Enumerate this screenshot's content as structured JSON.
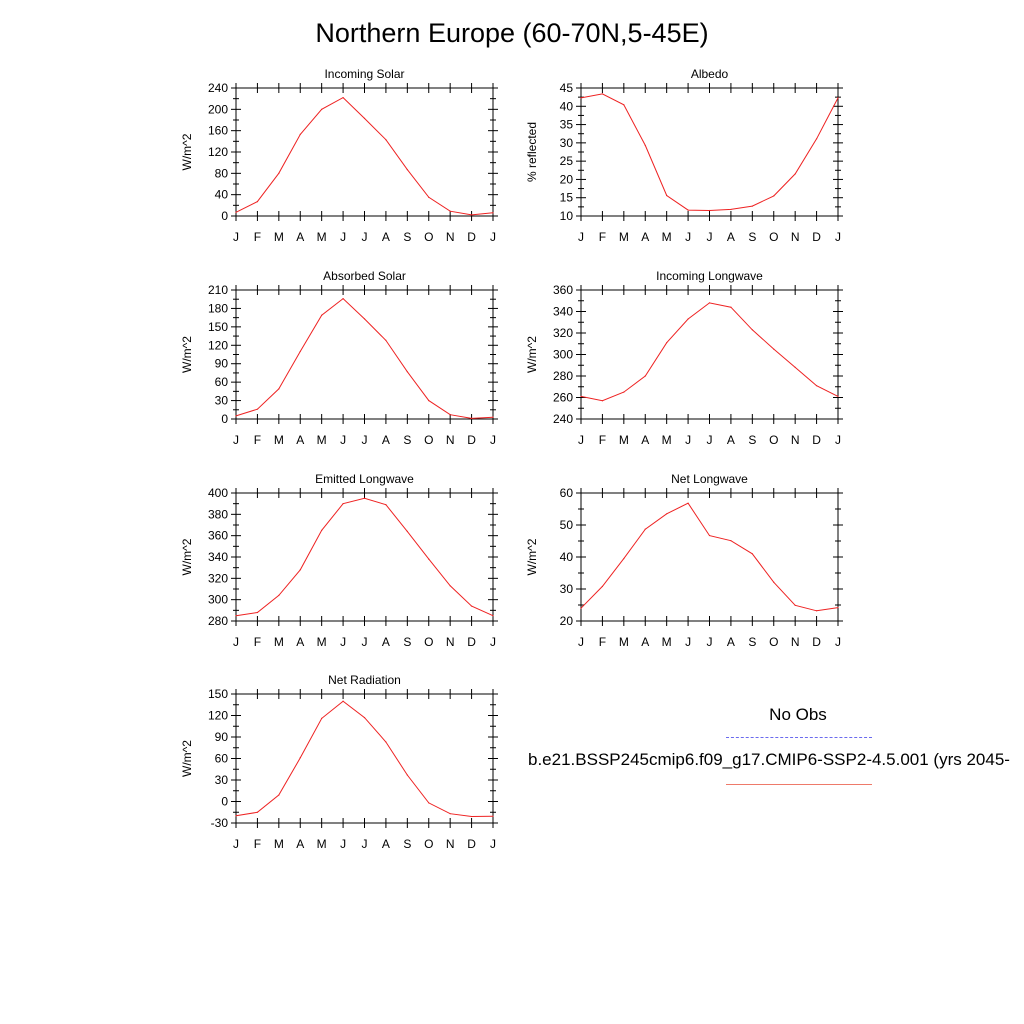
{
  "title": "Northern Europe (60-70N,5-45E)",
  "legend": {
    "obs_label": "No Obs",
    "obs_color": "#6a6aee",
    "case_label": "b.e21.BSSP245cmip6.f09_g17.CMIP6-SSP2-4.5.001 (yrs 2045-",
    "case_color": "#ee2222"
  },
  "chart_data": [
    {
      "type": "line",
      "title": "Incoming Solar",
      "ylabel": "W/m^2",
      "x": [
        "J",
        "F",
        "M",
        "A",
        "M",
        "J",
        "J",
        "A",
        "S",
        "O",
        "N",
        "D",
        "J"
      ],
      "ylim": [
        0,
        240
      ],
      "yticks": [
        0,
        40,
        80,
        120,
        160,
        200,
        240
      ],
      "series": [
        {
          "values": [
            7,
            27,
            80,
            153,
            200,
            222,
            183,
            143,
            87,
            35,
            9,
            2,
            6
          ]
        }
      ]
    },
    {
      "type": "line",
      "title": "Albedo",
      "ylabel": "% reflected",
      "x": [
        "J",
        "F",
        "M",
        "A",
        "M",
        "J",
        "J",
        "A",
        "S",
        "O",
        "N",
        "D",
        "J"
      ],
      "ylim": [
        10,
        45
      ],
      "yticks": [
        10,
        15,
        20,
        25,
        30,
        35,
        40,
        45
      ],
      "series": [
        {
          "values": [
            42.3,
            43.4,
            40.4,
            29.3,
            15.6,
            11.6,
            11.5,
            11.8,
            12.7,
            15.5,
            21.5,
            31.1,
            42.3
          ]
        }
      ]
    },
    {
      "type": "line",
      "title": "Absorbed Solar",
      "ylabel": "W/m^2",
      "x": [
        "J",
        "F",
        "M",
        "A",
        "M",
        "J",
        "J",
        "A",
        "S",
        "O",
        "N",
        "D",
        "J"
      ],
      "ylim": [
        0,
        210
      ],
      "yticks": [
        0,
        30,
        60,
        90,
        120,
        150,
        180,
        210
      ],
      "series": [
        {
          "values": [
            5,
            16,
            49,
            110,
            169,
            196,
            163,
            128,
            77,
            30,
            7,
            1,
            3
          ]
        }
      ]
    },
    {
      "type": "line",
      "title": "Incoming Longwave",
      "ylabel": "W/m^2",
      "x": [
        "J",
        "F",
        "M",
        "A",
        "M",
        "J",
        "J",
        "A",
        "S",
        "O",
        "N",
        "D",
        "J"
      ],
      "ylim": [
        240,
        360
      ],
      "yticks": [
        240,
        260,
        280,
        300,
        320,
        340,
        360
      ],
      "series": [
        {
          "values": [
            261,
            257,
            265,
            280,
            311,
            333,
            348,
            344,
            323,
            305,
            288,
            271,
            261
          ]
        }
      ]
    },
    {
      "type": "line",
      "title": "Emitted Longwave",
      "ylabel": "W/m^2",
      "x": [
        "J",
        "F",
        "M",
        "A",
        "M",
        "J",
        "J",
        "A",
        "S",
        "O",
        "N",
        "D",
        "J"
      ],
      "ylim": [
        280,
        400
      ],
      "yticks": [
        280,
        300,
        320,
        340,
        360,
        380,
        400
      ],
      "series": [
        {
          "values": [
            285,
            288,
            304,
            328,
            365,
            390,
            395,
            389,
            364,
            338,
            313,
            294,
            285
          ]
        }
      ]
    },
    {
      "type": "line",
      "title": "Net Longwave",
      "ylabel": "W/m^2",
      "x": [
        "J",
        "F",
        "M",
        "A",
        "M",
        "J",
        "J",
        "A",
        "S",
        "O",
        "N",
        "D",
        "J"
      ],
      "ylim": [
        20,
        60
      ],
      "yticks": [
        20,
        30,
        40,
        50,
        60
      ],
      "series": [
        {
          "values": [
            24,
            30.8,
            39.5,
            48.7,
            53.5,
            56.8,
            46.7,
            45.1,
            41,
            32.1,
            24.9,
            23.2,
            24.2
          ]
        }
      ]
    },
    {
      "type": "line",
      "title": "Net Radiation",
      "ylabel": "W/m^2",
      "x": [
        "J",
        "F",
        "M",
        "A",
        "M",
        "J",
        "J",
        "A",
        "S",
        "O",
        "N",
        "D",
        "J"
      ],
      "ylim": [
        -30,
        150
      ],
      "yticks": [
        -30,
        0,
        30,
        60,
        90,
        120,
        150
      ],
      "series": [
        {
          "values": [
            -20,
            -15,
            9,
            61,
            116,
            140,
            117,
            83,
            37,
            -2,
            -17,
            -21,
            -20.5
          ]
        }
      ]
    }
  ]
}
